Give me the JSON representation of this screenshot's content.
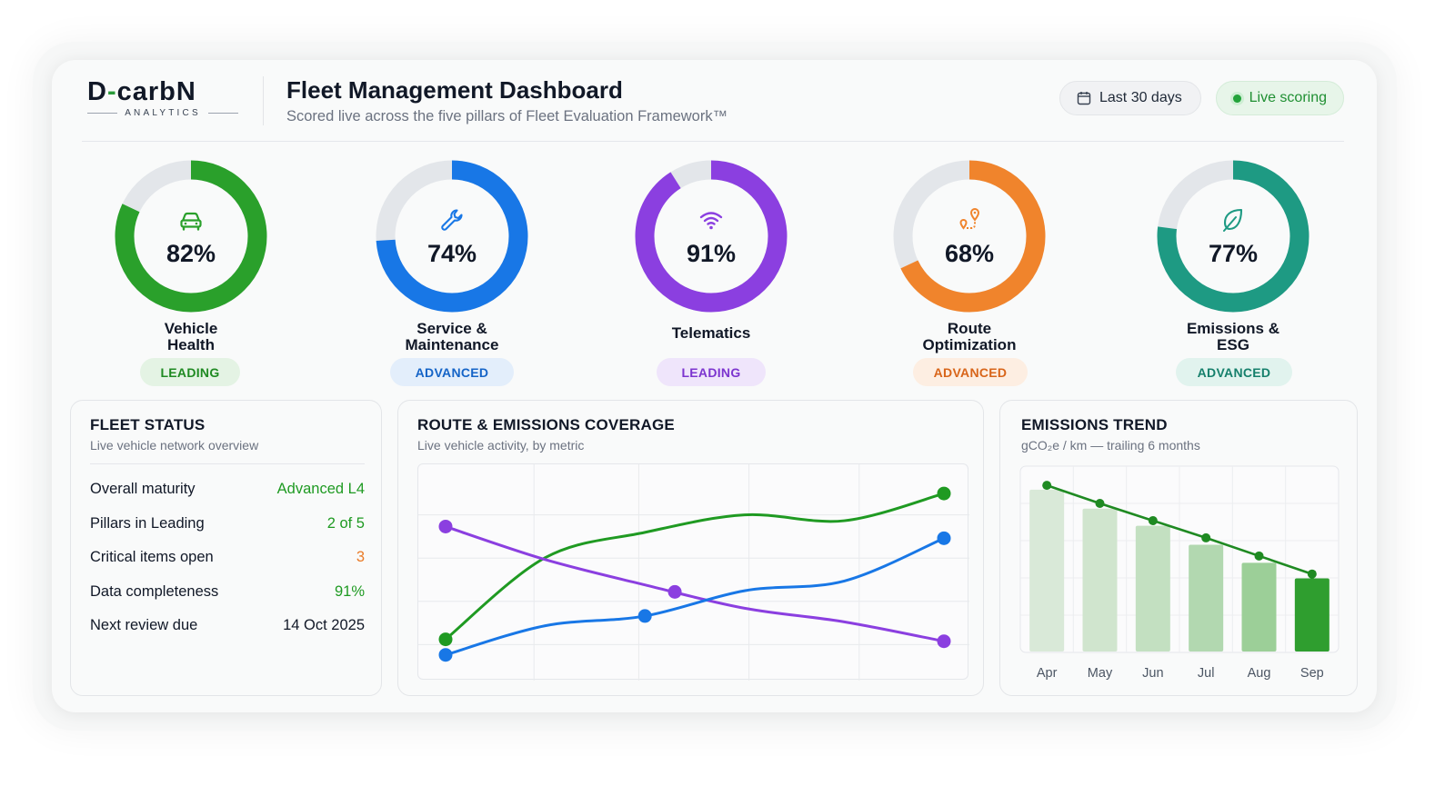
{
  "brand": {
    "logo_main": "D-carbN",
    "logo_sub": "ANALYTICS"
  },
  "header": {
    "title": "Fleet Management Dashboard",
    "subtitle": "Scored live across the five pillars of Fleet Evaluation Framework™",
    "date_range": "Last 30 days",
    "live_label": "Live scoring"
  },
  "pillars": [
    {
      "name_line1": "Vehicle",
      "name_line2": "Health",
      "score": 82,
      "label": "82%",
      "badge": "LEADING",
      "color": "#2aa02b",
      "badge_bg": "#e4f3e4",
      "badge_fg": "#1f8a22",
      "icon": "car-icon"
    },
    {
      "name_line1": "Service &",
      "name_line2": "Maintenance",
      "score": 74,
      "label": "74%",
      "badge": "ADVANCED",
      "color": "#1877e6",
      "badge_bg": "#e3eefb",
      "badge_fg": "#1564c7",
      "icon": "wrench-icon"
    },
    {
      "name_line1": "Telematics",
      "name_line2": "",
      "score": 91,
      "label": "91%",
      "badge": "LEADING",
      "color": "#8b3fe0",
      "badge_bg": "#efe5fb",
      "badge_fg": "#7c35cf",
      "icon": "wifi-icon"
    },
    {
      "name_line1": "Route",
      "name_line2": "Optimization",
      "score": 68,
      "label": "68%",
      "badge": "ADVANCED",
      "color": "#f0842c",
      "badge_bg": "#fdeee2",
      "badge_fg": "#d8651a",
      "icon": "route-pin-icon"
    },
    {
      "name_line1": "Emissions &",
      "name_line2": "ESG",
      "score": 77,
      "label": "77%",
      "badge": "ADVANCED",
      "color": "#1e9a83",
      "badge_bg": "#e1f3ee",
      "badge_fg": "#16806c",
      "icon": "leaf-icon"
    }
  ],
  "fleet_status": {
    "title": "FLEET STATUS",
    "subtitle": "Live vehicle network overview",
    "rows": [
      {
        "label": "Overall maturity",
        "value": "Advanced L4",
        "color": "#1f9a22"
      },
      {
        "label": "Pillars in Leading",
        "value": "2 of 5",
        "color": "#1f9a22"
      },
      {
        "label": "Critical items open",
        "value": "3",
        "color": "#ea7a26"
      },
      {
        "label": "Data completeness",
        "value": "91%",
        "color": "#1f9a22"
      },
      {
        "label": "Next review due",
        "value": "14 Oct 2025",
        "color": "#111827"
      }
    ]
  },
  "coverage": {
    "title": "ROUTE & EMISSIONS COVERAGE",
    "subtitle": "Live vehicle activity, by metric"
  },
  "emissions_trend": {
    "title": "EMISSIONS TREND",
    "subtitle": "gCO₂e / km — trailing 6 months"
  },
  "chart_data": [
    {
      "type": "line",
      "title": "ROUTE & EMISSIONS COVERAGE",
      "x": [
        0,
        1,
        2,
        3,
        4,
        5
      ],
      "ylim": [
        0,
        100
      ],
      "grid": true,
      "series": [
        {
          "color": "#1f9a22",
          "values": [
            10,
            52,
            65,
            74,
            71,
            85
          ]
        },
        {
          "color": "#8b3fe0",
          "values": [
            68,
            51,
            38,
            26,
            19,
            9
          ]
        },
        {
          "color": "#1877e6",
          "values": [
            2,
            17,
            22,
            35,
            40,
            62
          ]
        }
      ],
      "markers": [
        {
          "series": 0,
          "points": [
            0,
            5
          ]
        },
        {
          "series": 1,
          "points": [
            0,
            2.3,
            5
          ]
        },
        {
          "series": 2,
          "points": [
            0,
            2,
            5
          ]
        }
      ]
    },
    {
      "type": "bar",
      "title": "EMISSIONS TREND",
      "ylabel": "gCO₂e / km",
      "categories": [
        "Apr",
        "May",
        "Jun",
        "Jul",
        "Aug",
        "Sep"
      ],
      "values": [
        188,
        166,
        146,
        124,
        103,
        85
      ],
      "trend_values": [
        193,
        172,
        152,
        132,
        111,
        90
      ],
      "ylim": [
        0,
        210
      ],
      "grid": true,
      "bar_colors": [
        "#d9e9d8",
        "#d0e5ce",
        "#c3e0c1",
        "#b2d8b0",
        "#9ccf98",
        "#2f9e2f"
      ],
      "line_color": "#1f8a22"
    }
  ]
}
